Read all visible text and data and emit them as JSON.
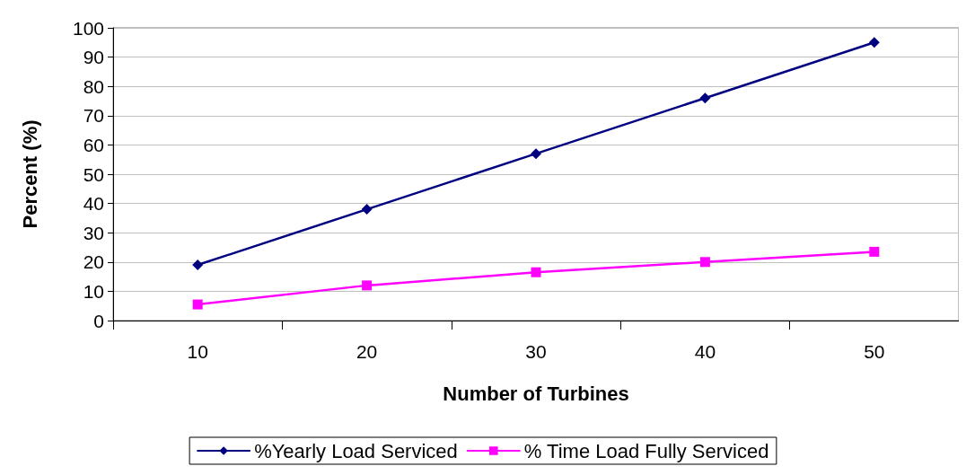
{
  "chart_data": {
    "type": "line",
    "xlabel": "Number of Turbines",
    "ylabel": "Percent (%)",
    "categories": [
      "10",
      "20",
      "30",
      "40",
      "50"
    ],
    "series": [
      {
        "name": "%Yearly Load Serviced",
        "color": "#000080",
        "marker": "diamond",
        "values": [
          19,
          38,
          57,
          76,
          95
        ]
      },
      {
        "name": "% Time Load Fully Serviced",
        "color": "#ff00ff",
        "marker": "square",
        "values": [
          5.5,
          12,
          16.5,
          20,
          23.5
        ]
      }
    ],
    "ylim": [
      0,
      100
    ],
    "yticks": [
      0,
      10,
      20,
      30,
      40,
      50,
      60,
      70,
      80,
      90,
      100
    ],
    "grid": "y",
    "legend": "bottom",
    "line_style": "solid"
  }
}
